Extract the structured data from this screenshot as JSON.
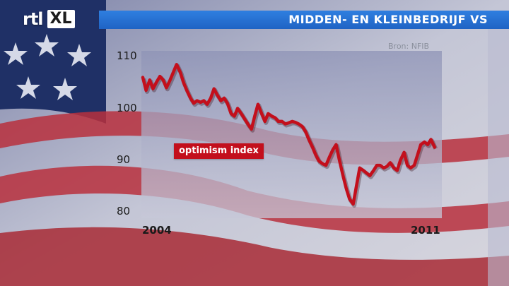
{
  "header": {
    "logo_text": "rtl",
    "logo_badge": "XL",
    "title": "MIDDEN- EN KLEINBEDRIJF VS"
  },
  "source": "Bron: NFIB",
  "colors": {
    "title_bar": "#1f63c4",
    "line": "#c30f1c",
    "plot_bg": "#9fa2c0"
  },
  "chart_data": {
    "type": "line",
    "title": "MIDDEN- EN KLEINBEDRIJF VS",
    "xlabel": "",
    "ylabel": "",
    "x_tick_labels": [
      "2004",
      "2011"
    ],
    "y_ticks": [
      80,
      90,
      100,
      110
    ],
    "ylim": [
      80,
      111
    ],
    "xlim": [
      2004.0,
      2011.4
    ],
    "grid": false,
    "series": [
      {
        "name": "optimism index",
        "x": [
          2004.0,
          2004.08,
          2004.17,
          2004.25,
          2004.33,
          2004.42,
          2004.5,
          2004.58,
          2004.67,
          2004.75,
          2004.83,
          2004.92,
          2005.0,
          2005.08,
          2005.17,
          2005.25,
          2005.33,
          2005.42,
          2005.5,
          2005.58,
          2005.67,
          2005.75,
          2005.83,
          2005.92,
          2006.0,
          2006.08,
          2006.17,
          2006.25,
          2006.33,
          2006.42,
          2006.5,
          2006.58,
          2006.67,
          2006.75,
          2006.83,
          2006.92,
          2007.0,
          2007.08,
          2007.17,
          2007.25,
          2007.33,
          2007.42,
          2007.5,
          2007.58,
          2007.67,
          2007.75,
          2007.83,
          2007.92,
          2008.0,
          2008.08,
          2008.17,
          2008.25,
          2008.33,
          2008.42,
          2008.5,
          2008.58,
          2008.67,
          2008.75,
          2008.83,
          2008.92,
          2009.0,
          2009.08,
          2009.17,
          2009.25,
          2009.33,
          2009.42,
          2009.5,
          2009.58,
          2009.67,
          2009.75,
          2009.83,
          2009.92,
          2010.0,
          2010.08,
          2010.17,
          2010.25,
          2010.33,
          2010.42,
          2010.5,
          2010.58,
          2010.67,
          2010.75,
          2010.83,
          2010.92,
          2011.0,
          2011.08,
          2011.17
        ],
        "values": [
          106.0,
          103.5,
          105.5,
          103.8,
          105.0,
          106.2,
          105.5,
          104.0,
          105.5,
          107.0,
          108.5,
          107.0,
          105.0,
          103.5,
          102.0,
          101.0,
          101.5,
          101.2,
          101.5,
          100.8,
          102.0,
          103.8,
          102.6,
          101.5,
          102.0,
          101.0,
          99.0,
          98.5,
          100.0,
          99.0,
          98.0,
          97.0,
          96.0,
          98.5,
          100.8,
          99.0,
          97.5,
          99.0,
          98.5,
          98.2,
          97.5,
          97.5,
          97.0,
          97.2,
          97.5,
          97.3,
          97.0,
          96.5,
          95.5,
          94.0,
          92.5,
          91.0,
          89.8,
          89.3,
          89.0,
          90.5,
          92.0,
          93.0,
          90.0,
          87.0,
          84.5,
          82.5,
          81.5,
          85.0,
          88.5,
          88.0,
          87.5,
          87.0,
          88.0,
          89.0,
          89.0,
          88.5,
          88.8,
          89.5,
          88.5,
          88.0,
          90.0,
          91.5,
          89.0,
          88.5,
          89.0,
          91.0,
          93.0,
          93.5,
          93.0,
          94.0,
          92.5
        ]
      }
    ]
  }
}
